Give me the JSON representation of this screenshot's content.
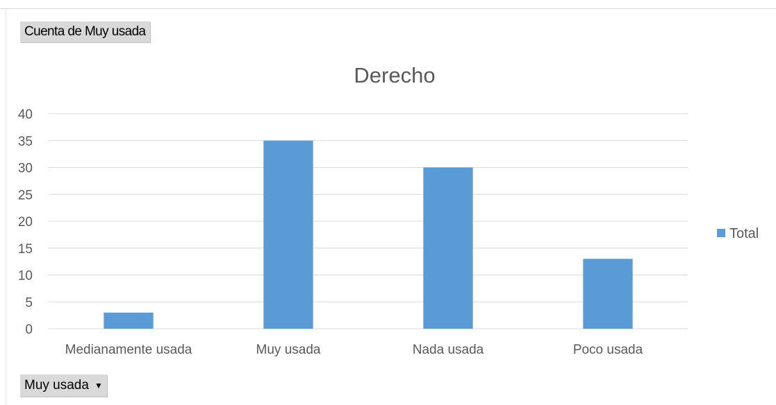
{
  "pivot": {
    "value_field_label": "Cuenta de Muy usada",
    "axis_field_label": "Muy usada",
    "axis_field_dropdown_icon": "caret-down-icon"
  },
  "chart_data": {
    "type": "bar",
    "title": "Derecho",
    "categories": [
      "Medianamente usada",
      "Muy usada",
      "Nada usada",
      "Poco usada"
    ],
    "series": [
      {
        "name": "Total",
        "values": [
          3,
          35,
          30,
          13
        ],
        "color": "#5b9bd5"
      }
    ],
    "ylim": [
      0,
      40
    ],
    "yticks": [
      0,
      5,
      10,
      15,
      20,
      25,
      30,
      35,
      40
    ],
    "grid": true,
    "legend_position": "right"
  }
}
